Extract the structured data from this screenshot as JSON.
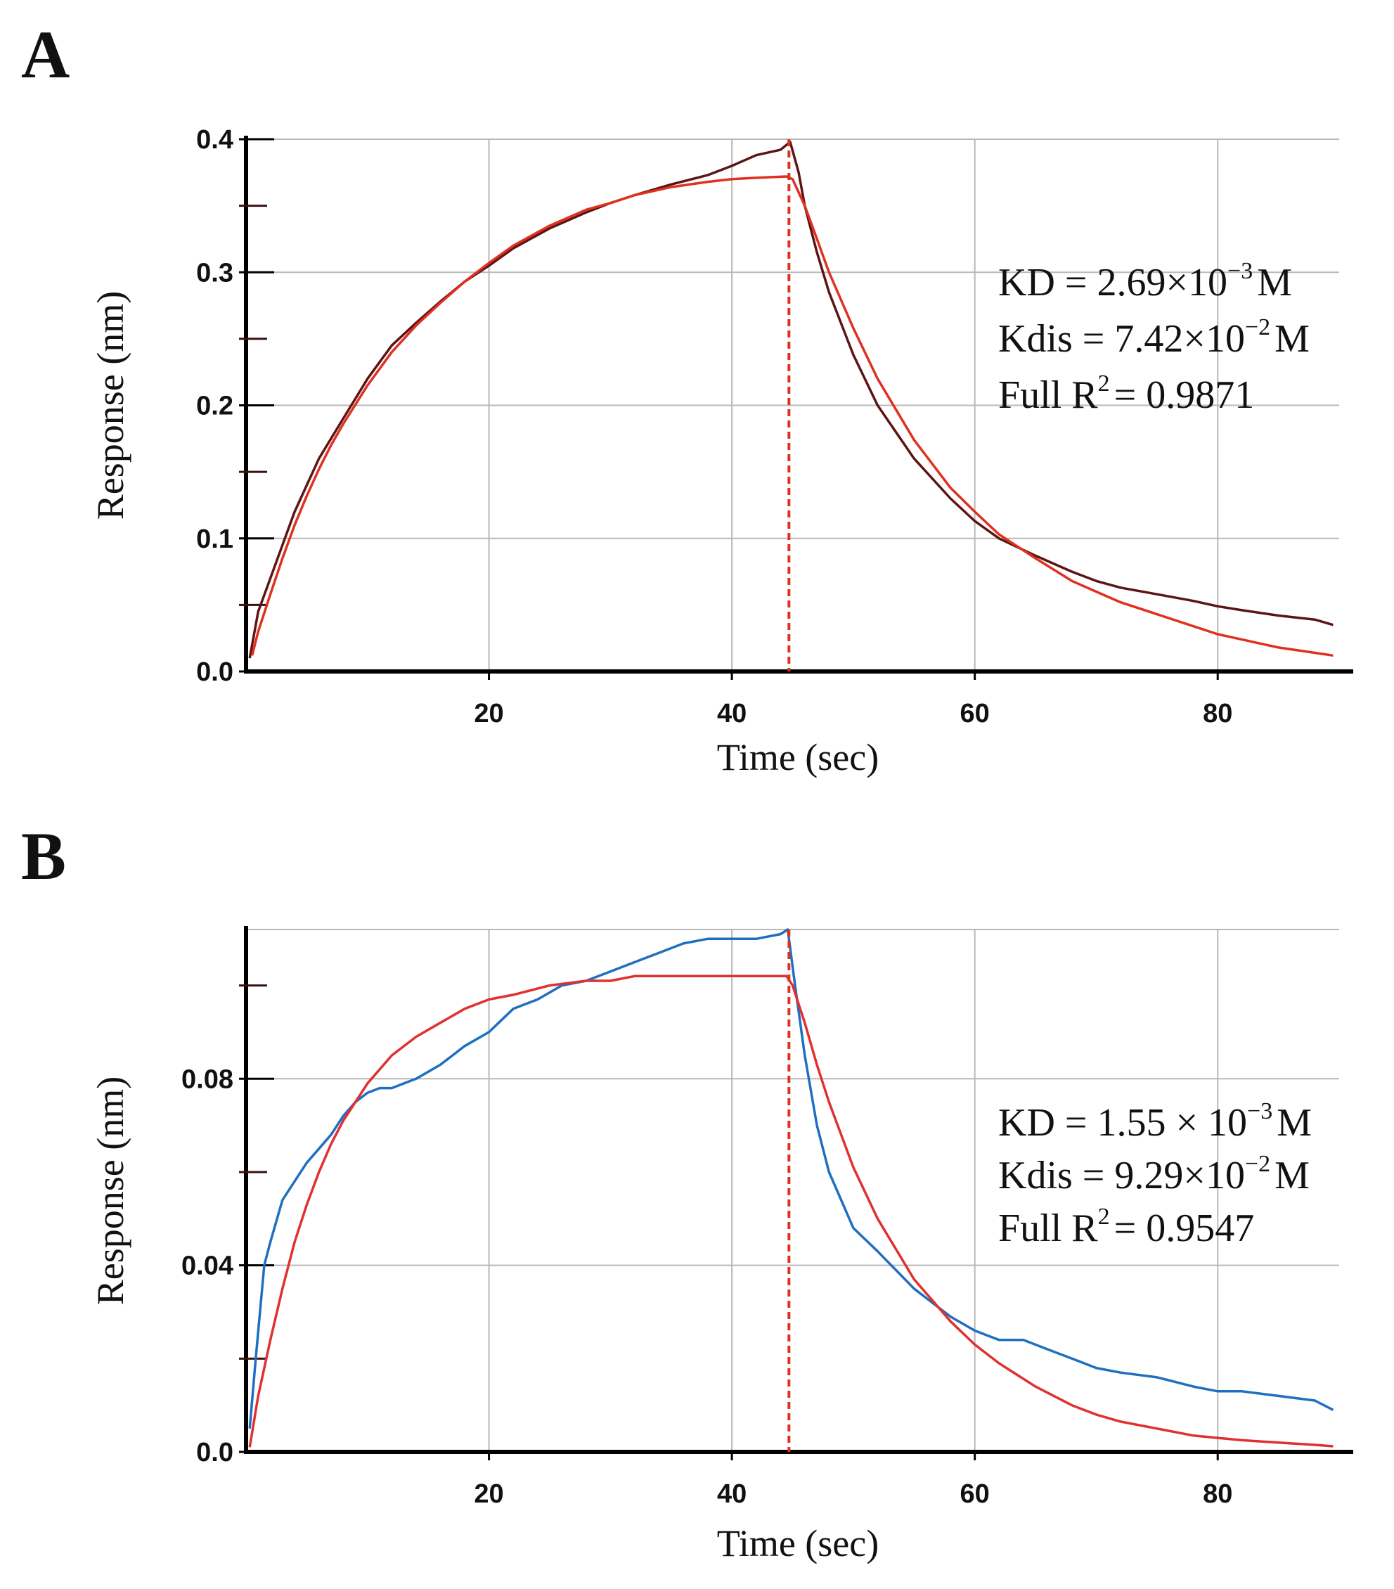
{
  "chart_data": [
    {
      "panel": "A",
      "type": "line",
      "xlabel": "Time (sec)",
      "ylabel": "Response (nm)",
      "xlim": [
        0,
        90
      ],
      "ylim": [
        0,
        0.4
      ],
      "xticks": [
        {
          "v": 20,
          "label": "20"
        },
        {
          "v": 40,
          "label": "40"
        },
        {
          "v": 60,
          "label": "60"
        },
        {
          "v": 80,
          "label": "80"
        }
      ],
      "yticks": [
        {
          "v": 0.0,
          "label": "0.0"
        },
        {
          "v": 0.1,
          "label": "0.1"
        },
        {
          "v": 0.2,
          "label": "0.2"
        },
        {
          "v": 0.3,
          "label": "0.3"
        },
        {
          "v": 0.4,
          "label": "0.4"
        }
      ],
      "minor_yticks": [
        0.05,
        0.15,
        0.25,
        0.35
      ],
      "grid": true,
      "vline_x": 44.7,
      "annotations": [
        {
          "base": "KD = 2.69×10",
          "sup": "−3",
          "tail": "M"
        },
        {
          "base": "Kdis = 7.42×10",
          "sup": "−2",
          "tail": "M"
        },
        {
          "base": "Full R",
          "sup": "2",
          "tail": "= 0.9871"
        }
      ],
      "series": [
        {
          "color": "#5c1414",
          "x": [
            0.3,
            1,
            2,
            3,
            4,
            5,
            6,
            7,
            8,
            10,
            12,
            14,
            16,
            18,
            20,
            22,
            25,
            28,
            30,
            32,
            35,
            38,
            40,
            42,
            44,
            44.8,
            45.5,
            46,
            47,
            48,
            50,
            52,
            55,
            58,
            60,
            62,
            65,
            68,
            70,
            72,
            75,
            78,
            80,
            82,
            85,
            88,
            89.5
          ],
          "y": [
            0.01,
            0.045,
            0.07,
            0.095,
            0.12,
            0.14,
            0.16,
            0.175,
            0.19,
            0.22,
            0.245,
            0.262,
            0.278,
            0.293,
            0.305,
            0.318,
            0.333,
            0.345,
            0.352,
            0.358,
            0.366,
            0.373,
            0.38,
            0.388,
            0.392,
            0.398,
            0.375,
            0.35,
            0.315,
            0.285,
            0.238,
            0.2,
            0.16,
            0.13,
            0.113,
            0.1,
            0.087,
            0.075,
            0.068,
            0.063,
            0.058,
            0.053,
            0.049,
            0.046,
            0.042,
            0.039,
            0.035
          ]
        },
        {
          "color": "#e03020",
          "x": [
            0.5,
            1,
            2,
            3,
            4,
            5,
            6,
            7,
            8,
            10,
            12,
            14,
            16,
            18,
            20,
            22,
            25,
            28,
            30,
            32,
            35,
            38,
            40,
            42,
            44.5,
            45,
            46,
            47,
            48,
            50,
            52,
            55,
            58,
            60,
            62,
            65,
            68,
            70,
            72,
            75,
            78,
            80,
            82,
            85,
            88,
            89.5
          ],
          "y": [
            0.012,
            0.03,
            0.058,
            0.085,
            0.11,
            0.132,
            0.152,
            0.17,
            0.186,
            0.215,
            0.24,
            0.26,
            0.277,
            0.293,
            0.307,
            0.32,
            0.335,
            0.347,
            0.352,
            0.358,
            0.364,
            0.368,
            0.37,
            0.371,
            0.372,
            0.37,
            0.35,
            0.325,
            0.3,
            0.258,
            0.22,
            0.174,
            0.138,
            0.12,
            0.103,
            0.085,
            0.068,
            0.06,
            0.052,
            0.043,
            0.034,
            0.028,
            0.024,
            0.018,
            0.014,
            0.012
          ]
        }
      ]
    },
    {
      "panel": "B",
      "type": "line",
      "xlabel": "Time (sec)",
      "ylabel": "Response (nm)",
      "xlim": [
        0,
        90
      ],
      "ylim": [
        0,
        0.112
      ],
      "xticks": [
        {
          "v": 20,
          "label": "20"
        },
        {
          "v": 40,
          "label": "40"
        },
        {
          "v": 60,
          "label": "60"
        },
        {
          "v": 80,
          "label": "80"
        }
      ],
      "yticks": [
        {
          "v": 0.0,
          "label": "0.0"
        },
        {
          "v": 0.04,
          "label": "0.04"
        },
        {
          "v": 0.08,
          "label": "0.08"
        }
      ],
      "minor_yticks": [
        0.02,
        0.06,
        0.1
      ],
      "grid": true,
      "vline_x": 44.7,
      "annotations": [
        {
          "base": "KD = 1.55 × 10",
          "sup": "−3",
          "tail": "M"
        },
        {
          "base": "Kdis = 9.29×10",
          "sup": "−2",
          "tail": "M"
        },
        {
          "base": "Full R",
          "sup": "2",
          "tail": "= 0.9547"
        }
      ],
      "series": [
        {
          "color": "#1f6fc0",
          "x": [
            0.3,
            0.8,
            1.5,
            2,
            3,
            4,
            5,
            6,
            7,
            8,
            9,
            10,
            11,
            12,
            13,
            14,
            16,
            18,
            20,
            22,
            24,
            26,
            28,
            30,
            32,
            34,
            36,
            38,
            40,
            42,
            44,
            44.6,
            45.2,
            46,
            47,
            48,
            50,
            52,
            55,
            58,
            60,
            62,
            64,
            66,
            68,
            70,
            72,
            75,
            78,
            80,
            82,
            85,
            88,
            89.5
          ],
          "y": [
            0.005,
            0.02,
            0.04,
            0.045,
            0.054,
            0.058,
            0.062,
            0.065,
            0.068,
            0.072,
            0.075,
            0.077,
            0.078,
            0.078,
            0.079,
            0.08,
            0.083,
            0.087,
            0.09,
            0.095,
            0.097,
            0.1,
            0.101,
            0.103,
            0.105,
            0.107,
            0.109,
            0.11,
            0.11,
            0.11,
            0.111,
            0.112,
            0.1,
            0.085,
            0.07,
            0.06,
            0.048,
            0.043,
            0.035,
            0.029,
            0.026,
            0.024,
            0.024,
            0.022,
            0.02,
            0.018,
            0.017,
            0.016,
            0.014,
            0.013,
            0.013,
            0.012,
            0.011,
            0.009
          ]
        },
        {
          "color": "#e03030",
          "x": [
            0.3,
            1,
            2,
            3,
            4,
            5,
            6,
            7,
            8,
            9,
            10,
            12,
            14,
            16,
            18,
            20,
            22,
            25,
            28,
            30,
            32,
            35,
            38,
            40,
            42,
            44.5,
            45,
            46,
            47,
            48,
            50,
            52,
            55,
            58,
            60,
            62,
            65,
            68,
            70,
            72,
            75,
            78,
            80,
            82,
            85,
            88,
            89.5
          ],
          "y": [
            0.001,
            0.012,
            0.024,
            0.035,
            0.045,
            0.053,
            0.06,
            0.066,
            0.071,
            0.075,
            0.079,
            0.085,
            0.089,
            0.092,
            0.095,
            0.097,
            0.098,
            0.1,
            0.101,
            0.101,
            0.102,
            0.102,
            0.102,
            0.102,
            0.102,
            0.102,
            0.1,
            0.092,
            0.083,
            0.075,
            0.061,
            0.05,
            0.037,
            0.028,
            0.023,
            0.019,
            0.014,
            0.01,
            0.008,
            0.0065,
            0.005,
            0.0035,
            0.003,
            0.0025,
            0.002,
            0.0015,
            0.0012
          ]
        }
      ]
    }
  ],
  "panels": [
    {
      "label": "A"
    },
    {
      "label": "B"
    }
  ]
}
